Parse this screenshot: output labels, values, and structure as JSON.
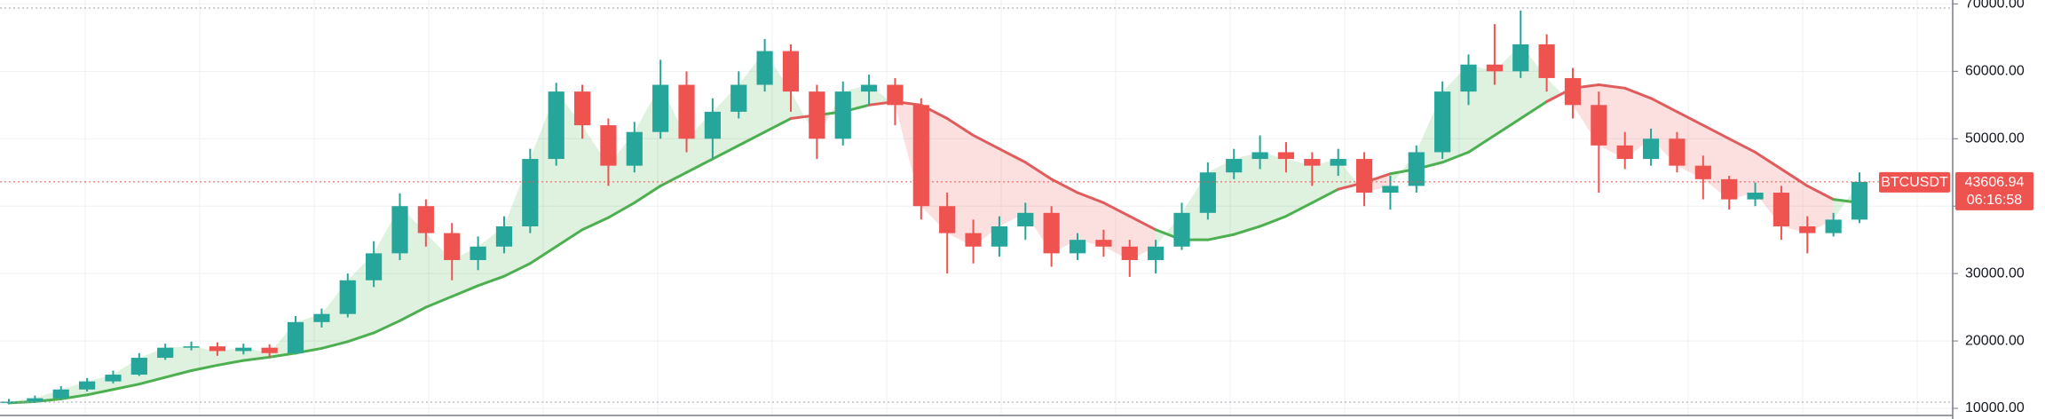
{
  "chart_data": {
    "type": "candlestick",
    "symbol": "BTCUSDT",
    "last_price": 43606.94,
    "countdown": "06:16:58",
    "ylim": [
      9080,
      70580
    ],
    "yticks": [
      {
        "value": 10000,
        "label": "10000.00"
      },
      {
        "value": 20000,
        "label": "20000.00"
      },
      {
        "value": 30000,
        "label": "30000.00"
      },
      {
        "value": 40000,
        "label": "40000.00"
      },
      {
        "value": 50000,
        "label": "50000.00"
      },
      {
        "value": 60000,
        "label": "60000.00"
      },
      {
        "value": 70000,
        "label": "70000.00"
      }
    ],
    "grid": true,
    "up_color": "#26a69a",
    "down_color": "#ef5350",
    "open": [
      10800,
      11000,
      11500,
      12800,
      14000,
      15000,
      17500,
      19000,
      19200,
      18500,
      19000,
      18200,
      22800,
      24000,
      29000,
      33000,
      40000,
      36000,
      32000,
      34000,
      37000,
      47000,
      57000,
      52000,
      46000,
      51000,
      58000,
      50000,
      54000,
      58000,
      63000,
      57000,
      50000,
      57000,
      58000,
      55000,
      40000,
      36000,
      34000,
      37000,
      39000,
      33000,
      35000,
      34000,
      32000,
      34000,
      39000,
      45000,
      47000,
      48000,
      47000,
      46000,
      47000,
      42000,
      43000,
      48000,
      57000,
      61000,
      60000,
      64000,
      59000,
      55000,
      49000,
      47000,
      50000,
      46000,
      44000,
      41000,
      42000,
      37000,
      36000,
      38000
    ],
    "high": [
      11400,
      11900,
      13300,
      14500,
      15600,
      18200,
      19600,
      19900,
      19800,
      19600,
      19500,
      23700,
      24800,
      30000,
      34800,
      41900,
      41000,
      37500,
      35500,
      38500,
      48500,
      58300,
      58000,
      53000,
      52500,
      61700,
      60000,
      56000,
      60000,
      64800,
      64000,
      58000,
      58500,
      59500,
      59000,
      56000,
      42000,
      38000,
      38500,
      40500,
      40000,
      36000,
      36500,
      35000,
      35000,
      40500,
      46500,
      48500,
      50500,
      49500,
      48000,
      48500,
      48000,
      44500,
      49000,
      58500,
      62500,
      67000,
      69000,
      65500,
      60500,
      57000,
      51000,
      51500,
      51000,
      47500,
      44500,
      43500,
      43000,
      38500,
      39000,
      45000
    ],
    "low": [
      10600,
      10800,
      11300,
      12500,
      13700,
      14800,
      17200,
      18600,
      17800,
      18000,
      17600,
      18000,
      22000,
      23500,
      28000,
      32000,
      34000,
      29000,
      30500,
      33000,
      36000,
      46000,
      50000,
      43000,
      45000,
      50000,
      48000,
      47000,
      53000,
      57000,
      54000,
      47000,
      49000,
      55000,
      52000,
      38000,
      30000,
      31500,
      32500,
      35000,
      31000,
      32000,
      32500,
      29500,
      30000,
      33500,
      38000,
      44000,
      45500,
      45000,
      43000,
      44500,
      40000,
      39500,
      42000,
      47000,
      55000,
      58000,
      59000,
      57000,
      53000,
      42000,
      45500,
      46000,
      45000,
      41000,
      39500,
      40000,
      35000,
      33000,
      35500,
      37500
    ],
    "close": [
      11000,
      11500,
      12800,
      14000,
      15000,
      17500,
      19000,
      19200,
      18500,
      19000,
      18200,
      22800,
      24000,
      29000,
      33000,
      40000,
      36000,
      32000,
      34000,
      37000,
      47000,
      57000,
      52000,
      46000,
      51000,
      58000,
      50000,
      54000,
      58000,
      63000,
      57000,
      50000,
      57000,
      58000,
      55000,
      40000,
      36000,
      34000,
      37000,
      39000,
      33000,
      35000,
      34000,
      32000,
      34000,
      39000,
      45000,
      47000,
      48000,
      47000,
      46000,
      47000,
      42000,
      43000,
      48000,
      57000,
      61000,
      60000,
      64000,
      59000,
      55000,
      49000,
      47000,
      50000,
      46000,
      44000,
      41000,
      42000,
      37000,
      36000,
      38000,
      43606.94
    ],
    "moving_average": {
      "color_above": "#4caf50",
      "color_below": "#e05c5c",
      "values": [
        10800,
        11000,
        11400,
        12000,
        12800,
        13600,
        14600,
        15600,
        16400,
        17100,
        17600,
        18200,
        18900,
        19900,
        21200,
        23000,
        25000,
        26600,
        28200,
        29600,
        31500,
        34000,
        36500,
        38300,
        40500,
        43000,
        45000,
        47000,
        49000,
        51000,
        53000,
        53500,
        54000,
        55000,
        55500,
        55000,
        53000,
        50500,
        48500,
        46500,
        44000,
        42000,
        40500,
        38500,
        36500,
        35000,
        35000,
        35800,
        37000,
        38500,
        40500,
        42500,
        43500,
        44800,
        45500,
        46500,
        48000,
        50500,
        53000,
        55500,
        57500,
        58000,
        57500,
        56000,
        54000,
        52000,
        50000,
        48000,
        45500,
        43000,
        41000,
        40500
      ]
    }
  }
}
